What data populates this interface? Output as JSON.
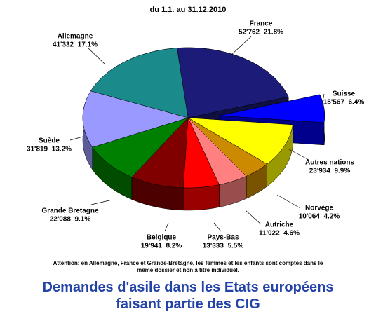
{
  "chart_data": {
    "type": "pie",
    "title": "Demandes d'asile dans les Etats européens faisant partie des CIG",
    "subtitle": "du 1.1. au 31.12.2010",
    "note": "Attention: en Allemagne, France et Grande-Bretagne, les femmes et les enfants sont comptés dans le même dossier et non à titre individuel.",
    "categories": [
      "France",
      "Suisse",
      "Autres nations",
      "Norvège",
      "Autriche",
      "Pays-Bas",
      "Belgique",
      "Grande Bretagne",
      "Suède",
      "Allemagne"
    ],
    "values": [
      52762,
      15567,
      23934,
      10064,
      11022,
      13333,
      19941,
      22088,
      31819,
      41332
    ],
    "value_labels": [
      "52'762  21.8%",
      "15'567  6.4%",
      "23'934  9.9%",
      "10'064  4.2%",
      "11'022  4.6%",
      "13'333  5.5%",
      "19'941  8.2%",
      "22'088  9.1%",
      "31'819  13.2%",
      "41'332  17.1%"
    ],
    "colors": [
      "#1c1c78",
      "#0000ff",
      "#ffff00",
      "#cc8a00",
      "#ff8080",
      "#ff0000",
      "#800000",
      "#008000",
      "#9999ff",
      "#1a8a8a"
    ],
    "exploded": [
      "Suisse"
    ]
  }
}
